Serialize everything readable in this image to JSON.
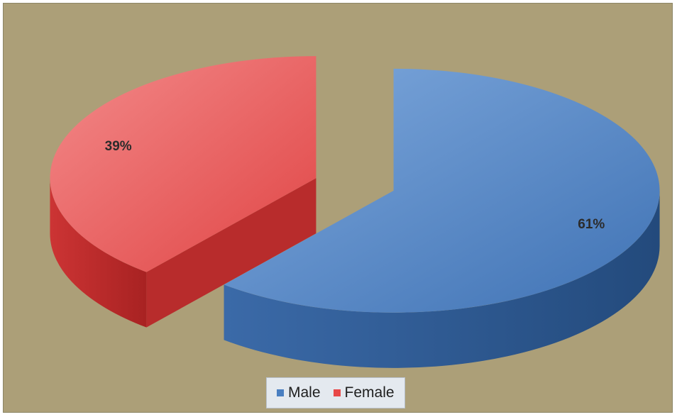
{
  "chart_data": {
    "type": "pie",
    "three_d": true,
    "exploded": true,
    "slices": [
      {
        "name": "Male",
        "value": 61,
        "label": "61%",
        "color": "#4a7fc1"
      },
      {
        "name": "Female",
        "value": 39,
        "label": "39%",
        "color": "#e84848"
      }
    ],
    "legend": {
      "placement": "bottom",
      "entries": [
        {
          "name": "Male",
          "color": "#4a7fc1"
        },
        {
          "name": "Female",
          "color": "#e84848"
        }
      ]
    },
    "background_color": "#ac9f78"
  }
}
